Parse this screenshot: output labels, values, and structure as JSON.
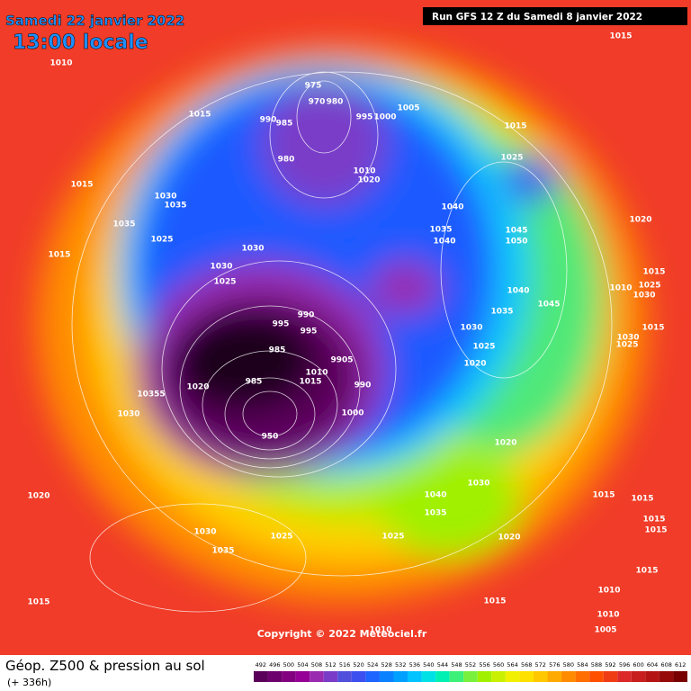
{
  "header": {
    "date": "Samedi 22 janvier 2022",
    "time": "13:00 locale",
    "run": "Run GFS 12 Z du Samedi 8 janvier 2022"
  },
  "footer": {
    "title": "Géop. Z500 & pression au sol",
    "lead": "(+ 336h)",
    "copyright": "Copyright © 2022 Meteociel.fr"
  },
  "isobar_labels": [
    975,
    970,
    980,
    990,
    985,
    995,
    1000,
    1005,
    980,
    1010,
    1020,
    1015,
    1025,
    1015,
    1010,
    1015,
    1015,
    1030,
    1035,
    1035,
    1025,
    1015,
    1030,
    1030,
    1025,
    1040,
    1035,
    1040,
    1045,
    1050,
    1020,
    1015,
    1040,
    1045,
    1035,
    990,
    995,
    995,
    985,
    9905,
    1010,
    1015,
    990,
    985,
    1020,
    1000,
    1030,
    1025,
    1020,
    10355,
    1030,
    950,
    1020,
    1030,
    1040,
    1035,
    1025,
    1020,
    1025,
    1035,
    1030,
    1020,
    1015,
    1015,
    1010,
    1010,
    1005,
    1015,
    1015,
    1015,
    1015,
    1015,
    1030,
    1025,
    1015,
    1030,
    1025,
    1010,
    1010
  ],
  "legend": {
    "values": [
      492,
      496,
      500,
      504,
      508,
      512,
      516,
      520,
      524,
      528,
      532,
      536,
      540,
      544,
      548,
      552,
      556,
      560,
      564,
      568,
      572,
      576,
      580,
      584,
      588,
      592,
      596,
      600,
      604,
      608,
      612
    ],
    "colors": [
      "#5a005a",
      "#6e006e",
      "#82007f",
      "#960096",
      "#9a2ab0",
      "#7a3cc8",
      "#5050dc",
      "#3c50f0",
      "#1e64ff",
      "#0a82ff",
      "#00a0ff",
      "#00c3ff",
      "#00e1e6",
      "#00f0b4",
      "#3cf078",
      "#78f03c",
      "#a0f000",
      "#c8f000",
      "#f0f000",
      "#ffe100",
      "#ffc800",
      "#ffaa00",
      "#ff8c00",
      "#ff6e00",
      "#ff5000",
      "#f03c14",
      "#dc2828",
      "#c81e1e",
      "#b41414",
      "#960a0a",
      "#780000"
    ]
  }
}
